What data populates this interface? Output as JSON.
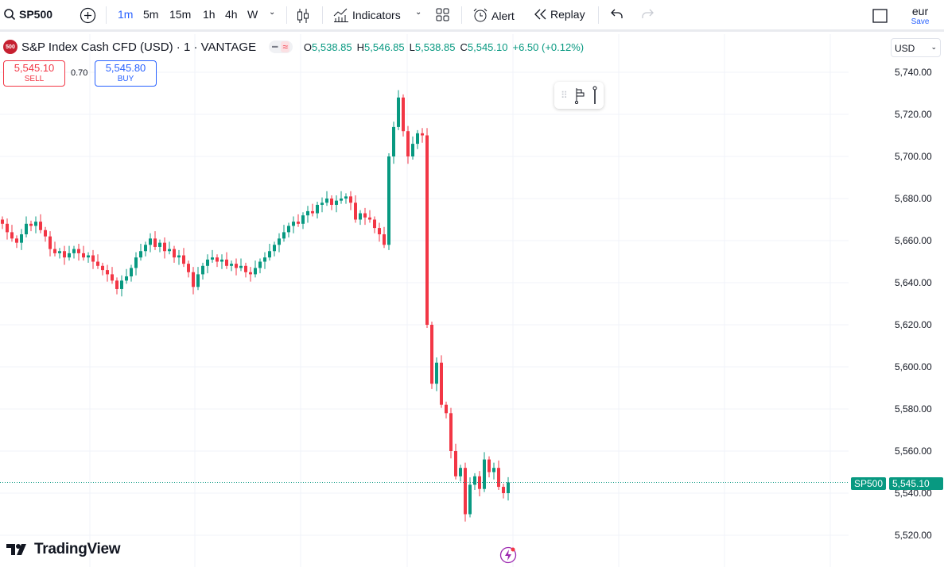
{
  "toolbar": {
    "symbol": "SP500",
    "intervals": [
      "1m",
      "5m",
      "15m",
      "1h",
      "4h",
      "W"
    ],
    "active_interval": "1m",
    "indicators": "Indicators",
    "alert": "Alert",
    "replay": "Replay",
    "layout_name": "eur",
    "save": "Save"
  },
  "legend": {
    "title": "S&P Index Cash CFD (USD) · 1 · VANTAGE",
    "badge": "500",
    "o_label": "O",
    "o": "5,538.85",
    "h_label": "H",
    "h": "5,546.85",
    "l_label": "L",
    "l": "5,538.85",
    "c_label": "C",
    "c": "5,545.10",
    "change": "+6.50 (+0.12%)"
  },
  "trade": {
    "sell_price": "5,545.10",
    "sell": "SELL",
    "spread": "0.70",
    "buy_price": "5,545.80",
    "buy": "BUY"
  },
  "scale": {
    "currency": "USD",
    "last_symbol": "SP500",
    "last_price": "5,545.10"
  },
  "branding": {
    "logo": "TradingView"
  },
  "colors": {
    "up": "#089981",
    "down": "#f23645",
    "accent": "#2962ff",
    "last_price": "#089981"
  },
  "chart_data": {
    "type": "candlestick",
    "symbol": "SP500",
    "interval": "1m",
    "ylim": [
      5515,
      5745
    ],
    "yticks": [
      "5,740.00",
      "5,720.00",
      "5,700.00",
      "5,680.00",
      "5,660.00",
      "5,640.00",
      "5,620.00",
      "5,600.00",
      "5,580.00",
      "5,560.00",
      "5,540.00",
      "5,520.00"
    ],
    "ytick_values": [
      5740,
      5720,
      5700,
      5680,
      5660,
      5640,
      5620,
      5600,
      5580,
      5560,
      5540,
      5520
    ],
    "grid": true,
    "last_price": 5545.1,
    "closes": [
      5668,
      5664,
      5661,
      5659,
      5663,
      5668,
      5667,
      5669,
      5665,
      5662,
      5656,
      5654,
      5655,
      5652,
      5654,
      5656,
      5654,
      5652,
      5653,
      5650,
      5648,
      5646,
      5644,
      5641,
      5637,
      5641,
      5643,
      5647,
      5652,
      5655,
      5658,
      5661,
      5657,
      5659,
      5655,
      5656,
      5652,
      5653,
      5649,
      5645,
      5638,
      5644,
      5648,
      5651,
      5652,
      5650,
      5651,
      5648,
      5649,
      5647,
      5648,
      5645,
      5644,
      5647,
      5650,
      5652,
      5655,
      5658,
      5661,
      5664,
      5667,
      5669,
      5668,
      5672,
      5674,
      5673,
      5677,
      5678,
      5680,
      5677,
      5679,
      5680,
      5681,
      5678,
      5670,
      5673,
      5671,
      5670,
      5666,
      5663,
      5658,
      5700,
      5714,
      5728,
      5712,
      5700,
      5706,
      5711,
      5710,
      5620,
      5592,
      5602,
      5582,
      5578,
      5560,
      5548,
      5552,
      5530,
      5544,
      5548,
      5542,
      5556,
      5550,
      5552,
      5543,
      5540,
      5545.1
    ]
  }
}
